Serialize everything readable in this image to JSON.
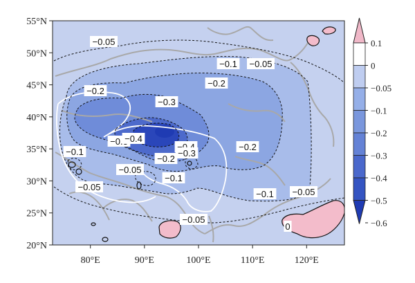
{
  "map": {
    "lat_ticks": [
      "55°N",
      "50°N",
      "45°N",
      "40°N",
      "35°N",
      "30°N",
      "25°N",
      "20°N"
    ],
    "lon_ticks": [
      "80°E",
      "90°E",
      "100°E",
      "110°E",
      "120°E"
    ],
    "extent": {
      "lon_min": 73,
      "lon_max": 127,
      "lat_min": 20,
      "lat_max": 55
    },
    "contour_labels": [
      "−0.05",
      "−0.1",
      "−0.05",
      "−0.2",
      "−0.2",
      "−0.3",
      "−0.3",
      "−0.4",
      "−0.3",
      "−0.4",
      "−0.2",
      "−0.2",
      "−0.1",
      "−0.05",
      "−0.1",
      "−0.05",
      "−0.1",
      "−0.05",
      "−0.05",
      "0"
    ]
  },
  "colorbar": {
    "labels": [
      "0.1",
      "0",
      "−0.05",
      "−0.1",
      "−0.2",
      "−0.3",
      "−0.4",
      "−0.5",
      "−0.6"
    ],
    "colors": [
      "#f0b8c8",
      "#ffffff",
      "#bfcdf0",
      "#95afe8",
      "#7a97dd",
      "#6482d6",
      "#4a68cc",
      "#3454c2",
      "#1f3bb3"
    ]
  },
  "colors": {
    "background_field": "#c5d1ef",
    "level_0_1": "#a8bcea",
    "level_0_2": "#8ca6e2",
    "level_0_3": "#6f8cd9",
    "level_0_4": "#4d6acb",
    "core": "#2a46ba",
    "positive": "#f3bccb",
    "borders": "#a8a8a8",
    "white_contour": "#ffffff"
  }
}
